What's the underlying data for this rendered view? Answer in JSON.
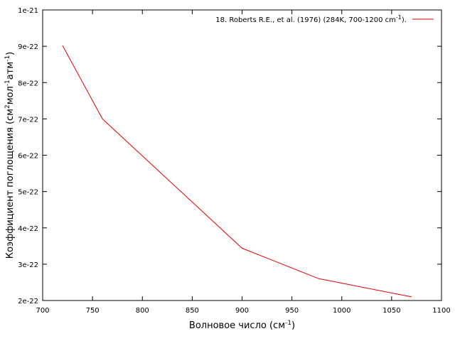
{
  "chart_data": {
    "type": "line",
    "title": "",
    "xlabel": "Волновое число (см",
    "xlabel_sup": "-1",
    "xlabel_tail": ")",
    "ylabel_parts": [
      "Коэффициент поглощения (см",
      "2",
      "мол",
      "-1",
      "атм",
      "-1",
      ")"
    ],
    "xlim": [
      700,
      1100
    ],
    "ylim": [
      2e-22,
      1e-21
    ],
    "x_ticks": [
      700,
      750,
      800,
      850,
      900,
      950,
      1000,
      1050,
      1100
    ],
    "x_tick_labels": [
      "700",
      "750",
      "800",
      "850",
      "900",
      "950",
      "1000",
      "1050",
      "1100"
    ],
    "y_ticks": [
      2e-22,
      3e-22,
      4e-22,
      5e-22,
      6e-22,
      7e-22,
      8e-22,
      9e-22,
      1e-21
    ],
    "y_tick_labels": [
      "2e-22",
      "3e-22",
      "4e-22",
      "5e-22",
      "6e-22",
      "7e-22",
      "8e-22",
      "9e-22",
      "1e-21"
    ],
    "grid": false,
    "legend_position": "top-right",
    "series": [
      {
        "name": "18. Roberts R.E., et al. (1976) (284K, 700-1200 cm",
        "name_sup": "-1",
        "name_tail": ").",
        "color": "#e00000",
        "x": [
          720,
          760,
          900,
          977,
          1070
        ],
        "y": [
          9.02e-22,
          7e-22,
          3.44e-22,
          2.6e-22,
          2.1e-22
        ]
      }
    ]
  }
}
